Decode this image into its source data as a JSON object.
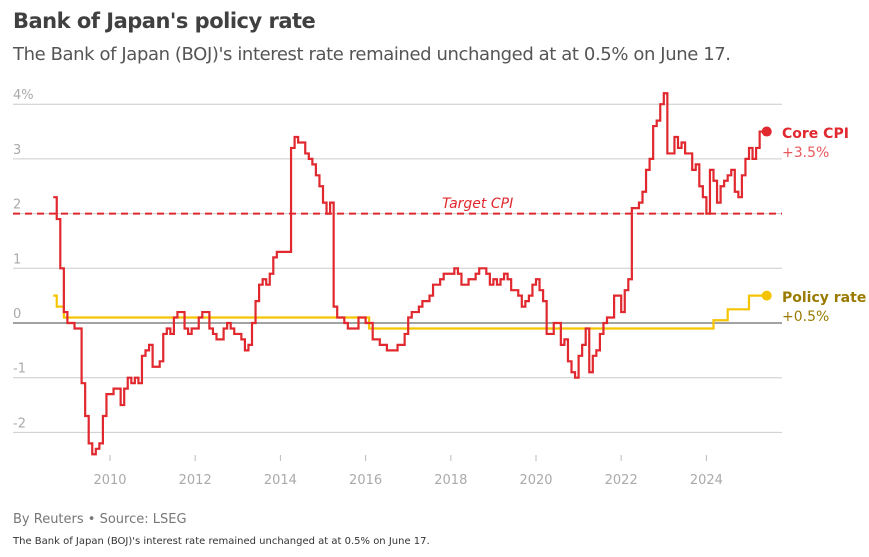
{
  "title": "Bank of Japan's policy rate",
  "subtitle": "The Bank of Japan (BOJ)'s interest rate remained unchanged at at 0.5% on June 17.",
  "byline": "By Reuters • Source: LSEG",
  "note": "The Bank of Japan (BOJ)'s interest rate remained unchanged at at 0.5% on June 17.",
  "chart_data": {
    "type": "line",
    "step": true,
    "ylim": [
      -2.4,
      4.2
    ],
    "xlim": [
      "2008-01",
      "2025-12"
    ],
    "y_ticks": [
      4,
      3,
      2,
      1,
      0,
      -1,
      -2
    ],
    "y_tick_labels": [
      "4%",
      "3",
      "2",
      "1",
      "0",
      "-1",
      "-2"
    ],
    "x_ticks": [
      2010,
      2012,
      2014,
      2016,
      2018,
      2020,
      2022,
      2024
    ],
    "x_tick_labels": [
      "2010",
      "2012",
      "2014",
      "2016",
      "2018",
      "2020",
      "2022",
      "2024"
    ],
    "grid": true,
    "colors": {
      "core_cpi": "#e0282e",
      "policy_rate": "#f5c400",
      "policy_label": "#9a7b00",
      "zero_line": "#444444",
      "grid": "#cccccc"
    },
    "reference_line": {
      "label": "Target CPI",
      "value": 2
    },
    "series": [
      {
        "name": "Core CPI",
        "end_label": "+3.5%",
        "start": "2008-09",
        "frequency": "monthly",
        "values": [
          2.3,
          1.9,
          1.0,
          0.2,
          0.0,
          0.0,
          -0.1,
          -0.1,
          -1.1,
          -1.7,
          -2.2,
          -2.4,
          -2.3,
          -2.2,
          -1.7,
          -1.3,
          -1.3,
          -1.2,
          -1.2,
          -1.5,
          -1.2,
          -1.0,
          -1.1,
          -1.0,
          -1.1,
          -0.6,
          -0.5,
          -0.4,
          -0.8,
          -0.8,
          -0.7,
          -0.2,
          -0.1,
          -0.2,
          0.1,
          0.2,
          0.2,
          -0.1,
          -0.2,
          -0.1,
          -0.1,
          0.1,
          0.2,
          0.2,
          -0.1,
          -0.2,
          -0.3,
          -0.3,
          -0.1,
          0.0,
          -0.1,
          -0.2,
          -0.2,
          -0.3,
          -0.5,
          -0.4,
          0.0,
          0.4,
          0.7,
          0.8,
          0.7,
          0.9,
          1.2,
          1.3,
          1.3,
          1.3,
          1.3,
          3.2,
          3.4,
          3.3,
          3.3,
          3.1,
          3.0,
          2.9,
          2.7,
          2.5,
          2.2,
          2.0,
          2.2,
          0.3,
          0.1,
          0.1,
          0.0,
          -0.1,
          -0.1,
          -0.1,
          0.1,
          0.1,
          0.0,
          0.0,
          -0.3,
          -0.3,
          -0.4,
          -0.4,
          -0.5,
          -0.5,
          -0.5,
          -0.4,
          -0.4,
          -0.2,
          0.1,
          0.2,
          0.2,
          0.3,
          0.4,
          0.4,
          0.5,
          0.7,
          0.7,
          0.8,
          0.9,
          0.9,
          0.9,
          1.0,
          0.9,
          0.7,
          0.7,
          0.8,
          0.8,
          0.9,
          1.0,
          1.0,
          0.9,
          0.7,
          0.8,
          0.7,
          0.8,
          0.9,
          0.8,
          0.6,
          0.6,
          0.5,
          0.3,
          0.4,
          0.5,
          0.7,
          0.8,
          0.6,
          0.4,
          -0.2,
          -0.2,
          0.0,
          0.0,
          -0.4,
          -0.3,
          -0.7,
          -0.9,
          -1.0,
          -0.6,
          -0.4,
          -0.1,
          -0.9,
          -0.6,
          -0.5,
          -0.2,
          0.0,
          0.1,
          0.1,
          0.5,
          0.5,
          0.2,
          0.6,
          0.8,
          2.1,
          2.1,
          2.2,
          2.4,
          2.8,
          3.0,
          3.6,
          3.7,
          4.0,
          4.2,
          3.1,
          3.1,
          3.4,
          3.2,
          3.3,
          3.1,
          3.1,
          2.8,
          2.9,
          2.5,
          2.3,
          2.0,
          2.8,
          2.6,
          2.2,
          2.5,
          2.6,
          2.7,
          2.8,
          2.4,
          2.3,
          2.7,
          3.0,
          3.2,
          3.0,
          3.2,
          3.5,
          3.5
        ]
      },
      {
        "name": "Policy rate",
        "end_label": "+0.5%",
        "points": [
          [
            "2008-09",
            0.5
          ],
          [
            "2008-10",
            0.3
          ],
          [
            "2008-12",
            0.1
          ],
          [
            "2016-02",
            -0.1
          ],
          [
            "2024-03",
            0.05
          ],
          [
            "2024-07",
            0.25
          ],
          [
            "2025-01",
            0.5
          ],
          [
            "2025-06",
            0.5
          ]
        ]
      }
    ]
  }
}
